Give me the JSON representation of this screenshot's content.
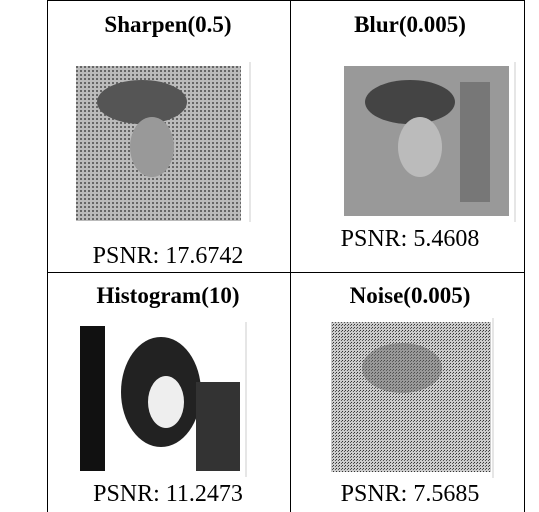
{
  "table": {
    "rows": [
      [
        {
          "title": "Sharpen(0.5)",
          "psnr": "PSNR: 17.6742"
        },
        {
          "title": "Blur(0.005)",
          "psnr": "PSNR: 5.4608"
        }
      ],
      [
        {
          "title": "Histogram(10)",
          "psnr": "PSNR: 11.2473"
        },
        {
          "title": "Noise(0.005)",
          "psnr": "PSNR: 7.5685"
        }
      ]
    ]
  }
}
